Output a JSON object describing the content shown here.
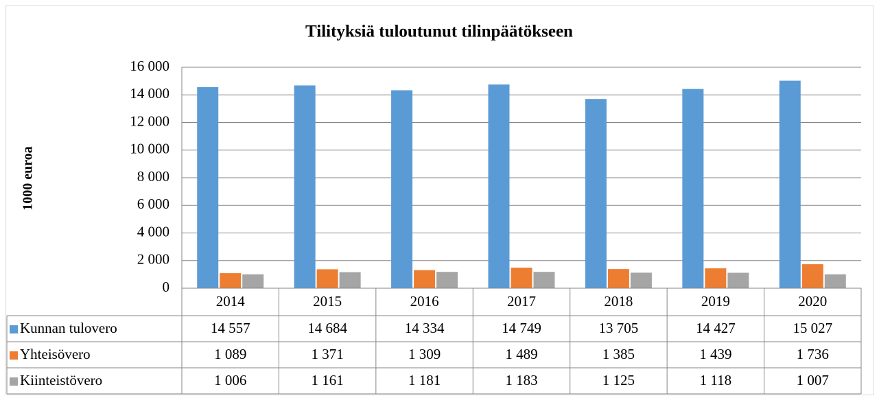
{
  "chart_data": {
    "type": "bar",
    "title": "Tilityksiä tuloutunut tilinpäätökseen",
    "y_label": "1000 euroa",
    "categories": [
      "2014",
      "2015",
      "2016",
      "2017",
      "2018",
      "2019",
      "2020"
    ],
    "series": [
      {
        "name": "Kunnan tulovero",
        "color": "#5b9bd5",
        "values": [
          14557,
          14684,
          14334,
          14749,
          13705,
          14427,
          15027
        ],
        "value_labels": [
          "14 557",
          "14 684",
          "14 334",
          "14 749",
          "13 705",
          "14 427",
          "15 027"
        ]
      },
      {
        "name": "Yhteisövero",
        "color": "#ed7d31",
        "values": [
          1089,
          1371,
          1309,
          1489,
          1385,
          1439,
          1736
        ],
        "value_labels": [
          "1 089",
          "1 371",
          "1 309",
          "1 489",
          "1 385",
          "1 439",
          "1 736"
        ]
      },
      {
        "name": "Kiinteistövero",
        "color": "#a5a5a5",
        "values": [
          1006,
          1161,
          1181,
          1183,
          1125,
          1118,
          1007
        ],
        "value_labels": [
          "1 006",
          "1 161",
          "1 181",
          "1 183",
          "1 125",
          "1 118",
          "1 007"
        ]
      }
    ],
    "ylim": [
      0,
      16000
    ],
    "yticks": [
      0,
      {
        "value": 2000,
        "label": "2 000"
      },
      {
        "value": 4000,
        "label": "4 000"
      },
      {
        "value": 6000,
        "label": "6 000"
      },
      {
        "value": 8000,
        "label": "8 000"
      },
      {
        "value": 10000,
        "label": "10 000"
      },
      {
        "value": 12000,
        "label": "12 000"
      },
      {
        "value": 14000,
        "label": "14 000"
      },
      {
        "value": 16000,
        "label": "16 000"
      }
    ],
    "grid": true
  }
}
